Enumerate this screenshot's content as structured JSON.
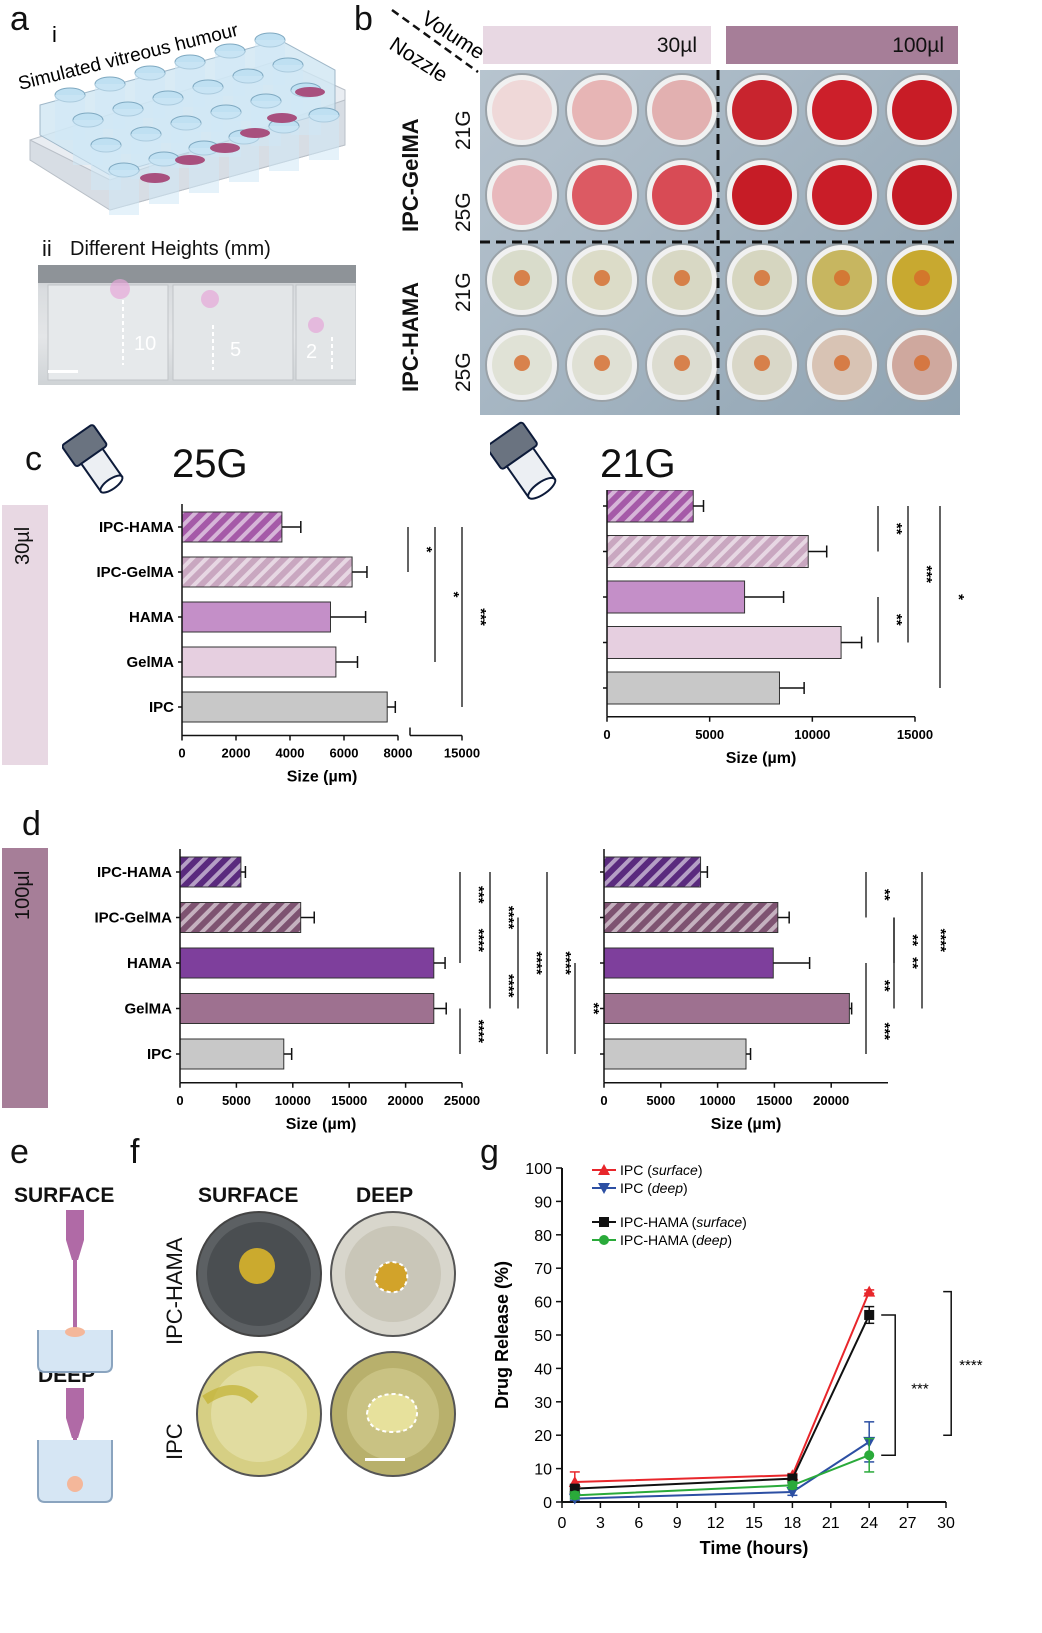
{
  "panel_labels": {
    "a": "a",
    "b": "b",
    "c": "c",
    "d": "d",
    "e": "e",
    "f": "f",
    "g": "g"
  },
  "panel_a": {
    "sub_i": "i",
    "title_i": "Simulated vitreous humour",
    "sub_ii": "ii",
    "title_ii": "Different Heights (mm)",
    "heights": [
      "10",
      "5",
      "2"
    ]
  },
  "panel_b": {
    "volume_label": "Volume",
    "nozzle_label": "Nozzle",
    "volumes": [
      "30µl",
      "100µl"
    ],
    "materials": [
      "IPC-GelMA",
      "IPC-HAMA"
    ],
    "nozzles": [
      "21G",
      "25G",
      "21G",
      "25G"
    ]
  },
  "panel_c": {
    "volume": "30µl",
    "left_title": "25G",
    "right_title": "21G"
  },
  "panel_d": {
    "volume": "100µl"
  },
  "panel_e": {
    "surface": "SURFACE",
    "deep": "DEEP"
  },
  "panel_f": {
    "col_surface": "SURFACE",
    "col_deep": "DEEP",
    "row_hama": "IPC-HAMA",
    "row_ipc": "IPC"
  },
  "colors": {
    "ipc": "#c8c8c8",
    "gelma_30": "#e6cfe0",
    "hama_30": "#c48fc8",
    "ipcgelma_30": "#c9a7c0",
    "ipchama_30": "#a55aa8",
    "gelma_100": "#9e7190",
    "hama_100": "#7e3f9c",
    "ipcgelma_100": "#7e5371",
    "ipchama_100": "#5a2a7e",
    "vol30_band": "#e8d8e3",
    "vol100_band": "#a67e98"
  },
  "chart_data": [
    {
      "id": "c-25G",
      "type": "bar",
      "orientation": "horizontal",
      "title": "25G",
      "categories": [
        "IPC-HAMA",
        "IPC-GelMA",
        "HAMA",
        "GelMA",
        "IPC"
      ],
      "values": [
        3700,
        6300,
        5500,
        5700,
        7600
      ],
      "errors": [
        700,
        550,
        1300,
        800,
        300
      ],
      "xlabel": "Size (µm)",
      "xlim": [
        0,
        15000
      ],
      "axis_break": [
        8000,
        12000
      ],
      "xticks": [
        "0",
        "2000",
        "4000",
        "6000",
        "8000",
        "15000"
      ],
      "significance": [
        "*",
        "*",
        "***"
      ]
    },
    {
      "id": "c-21G",
      "type": "bar",
      "orientation": "horizontal",
      "title": "21G",
      "categories": [
        "IPC-HAMA",
        "IPC-GelMA",
        "HAMA",
        "GelMA",
        "IPC"
      ],
      "values": [
        4200,
        9800,
        6700,
        11400,
        8400
      ],
      "errors": [
        500,
        900,
        1900,
        1000,
        1200
      ],
      "xlabel": "Size (µm)",
      "xlim": [
        0,
        15000
      ],
      "xticks": [
        "0",
        "5000",
        "10000",
        "15000"
      ],
      "significance": [
        "**",
        "***",
        "**",
        "*"
      ]
    },
    {
      "id": "d-25G",
      "type": "bar",
      "orientation": "horizontal",
      "categories": [
        "IPC-HAMA",
        "IPC-GelMA",
        "HAMA",
        "GelMA",
        "IPC"
      ],
      "values": [
        5400,
        10700,
        22500,
        22500,
        9200
      ],
      "errors": [
        400,
        1200,
        1000,
        1100,
        700
      ],
      "xlabel": "Size (µm)",
      "xlim": [
        0,
        25000
      ],
      "xticks": [
        "0",
        "5000",
        "10000",
        "15000",
        "20000",
        "25000"
      ],
      "significance": [
        "***",
        "****",
        "****",
        "****",
        "****",
        "****",
        "****",
        "**"
      ]
    },
    {
      "id": "d-21G",
      "type": "bar",
      "orientation": "horizontal",
      "categories": [
        "IPC-HAMA",
        "IPC-GelMA",
        "HAMA",
        "GelMA",
        "IPC"
      ],
      "values": [
        8500,
        15300,
        14900,
        21600,
        12500
      ],
      "errors": [
        600,
        1000,
        3200,
        200,
        400
      ],
      "xlabel": "Size (µm)",
      "xlim": [
        0,
        25000
      ],
      "xticks": [
        "0",
        "5000",
        "10000",
        "15000",
        "20000"
      ],
      "significance": [
        "**",
        "**",
        "****",
        "**",
        "**",
        "***"
      ]
    },
    {
      "id": "g",
      "type": "line",
      "x": [
        1,
        18,
        24
      ],
      "series": [
        {
          "name": "IPC (surface)",
          "values": [
            6,
            8,
            63
          ],
          "errors": [
            3,
            0.5,
            0.5
          ],
          "color": "#e8262b",
          "marker": "triangle-up"
        },
        {
          "name": "IPC (deep)",
          "values": [
            1,
            3,
            18
          ],
          "errors": [
            0.5,
            1,
            6
          ],
          "color": "#2c4fa3",
          "marker": "triangle-down"
        },
        {
          "name": "IPC-HAMA (surface)",
          "values": [
            4,
            7,
            56
          ],
          "errors": [
            1,
            1,
            2.5
          ],
          "color": "#111111",
          "marker": "square"
        },
        {
          "name": "IPC-HAMA (deep)",
          "values": [
            2,
            5,
            14
          ],
          "errors": [
            1,
            1,
            5
          ],
          "color": "#2aaa3a",
          "marker": "circle"
        }
      ],
      "xlabel": "Time (hours)",
      "ylabel": "Drug Release (%)",
      "xlim": [
        0,
        30
      ],
      "ylim": [
        0,
        100
      ],
      "xticks": [
        0,
        3,
        6,
        9,
        12,
        15,
        18,
        21,
        24,
        27,
        30
      ],
      "yticks": [
        0,
        10,
        20,
        30,
        40,
        50,
        60,
        70,
        80,
        90,
        100
      ],
      "legend_names": [
        "IPC",
        "IPC",
        "IPC-HAMA",
        "IPC-HAMA"
      ],
      "legend_suffix": [
        "surface",
        "deep",
        "surface",
        "deep"
      ],
      "significance": [
        "***",
        "****"
      ]
    }
  ]
}
